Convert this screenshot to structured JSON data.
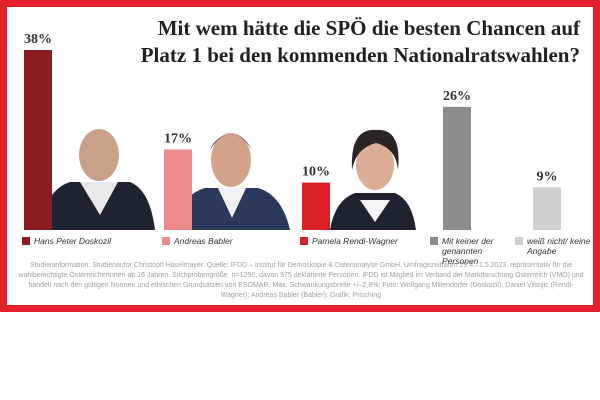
{
  "chart_data": {
    "type": "bar",
    "title": [
      "Mit wem hätte die SPÖ die besten Chancen auf",
      "Platz 1 bei den kommenden Nationalratswahlen?"
    ],
    "categories": [
      "Hans Peter Doskozil",
      "Andreas Babler",
      "Pamela Rendi-Wagner",
      "Mit keiner der genannten Personen",
      "weiß nicht/ keine Angabe"
    ],
    "values": [
      38,
      17,
      10,
      26,
      9
    ],
    "value_labels": [
      "38%",
      "17%",
      "10%",
      "26%",
      "9%"
    ],
    "colors": [
      "#8b1c1f",
      "#ec8a8c",
      "#dc2027",
      "#8c8c8c",
      "#cfcfcf"
    ],
    "source": "Studieninformation: Studienautor Christoph Haselmayer. Quelle: IFDD – Institut für Demoskopie & Datenanalyse GmbH. Umfragezeitraum 29.4.–1.5.2023, repräsentativ für die wahlberechtigte ÖsterreicherInnen ab 16 Jahren. Stichprobengröße: n=1250, davon 975 deklarierte Personen. IFDD ist Mitglied im Verband der Marktforschung Österreich (VMÖ) und handelt nach den gültigen Normen und ethischen Grundsätzen von ESOMAR. Max. Schwankungsbreite +/–2,8%; Foto: Wolfgang Millendorfer (Doskozil); Daniel Vilsnjic (Rendi-Wagner); Andreas Babler (Babler); Grafik: Prisching"
  }
}
